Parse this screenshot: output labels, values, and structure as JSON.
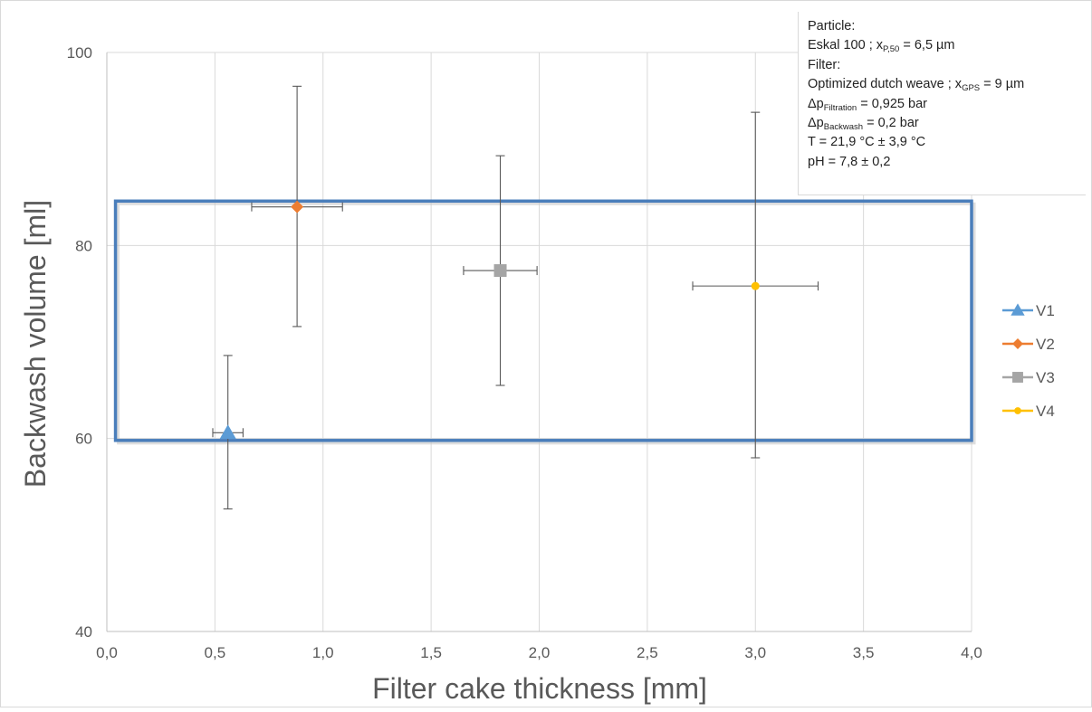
{
  "chart_data": {
    "type": "scatter",
    "xlabel": "Filter cake thickness [mm]",
    "ylabel": "Backwash volume [ml]",
    "xlim": [
      0,
      4
    ],
    "ylim": [
      40,
      100
    ],
    "x_ticks": [
      "0,0",
      "0,5",
      "1,0",
      "1,5",
      "2,0",
      "2,5",
      "3,0",
      "3,5",
      "4,0"
    ],
    "y_ticks": [
      "40",
      "60",
      "80",
      "100"
    ],
    "x_tick_values": [
      0,
      0.5,
      1,
      1.5,
      2,
      2.5,
      3,
      3.5,
      4
    ],
    "y_tick_values": [
      40,
      60,
      80,
      100
    ],
    "grid": true,
    "legend_position": "right",
    "series": [
      {
        "name": "V1",
        "marker": "triangle",
        "color": "#5b9bd5",
        "x": 0.56,
        "y": 60.6,
        "x_err": [
          0.49,
          0.63
        ],
        "y_err": [
          52.7,
          68.6
        ]
      },
      {
        "name": "V2",
        "marker": "diamond",
        "color": "#ed7d31",
        "x": 0.88,
        "y": 84.0,
        "x_err": [
          0.67,
          1.09
        ],
        "y_err": [
          71.6,
          96.5
        ]
      },
      {
        "name": "V3",
        "marker": "square",
        "color": "#a5a5a5",
        "x": 1.82,
        "y": 77.4,
        "x_err": [
          1.65,
          1.99
        ],
        "y_err": [
          65.5,
          89.3
        ]
      },
      {
        "name": "V4",
        "marker": "circle",
        "color": "#ffc000",
        "x": 3.0,
        "y": 75.8,
        "x_err": [
          2.71,
          3.29
        ],
        "y_err": [
          58.0,
          93.8
        ]
      }
    ],
    "highlight_box": {
      "x_range": [
        0.04,
        4.0
      ],
      "y_range": [
        59.8,
        84.6
      ],
      "color": "#4a7ebb"
    },
    "annotation": {
      "particle_heading": "Particle:",
      "particle_line": {
        "pre": "Eskal 100 ; x",
        "sub": "P,50",
        "post": " = 6,5 µm"
      },
      "filter_heading": "Filter:",
      "filter_line": {
        "pre": "Optimized dutch weave ; x",
        "sub": "GPS",
        "post": " = 9 µm"
      },
      "dp_filtration": {
        "pre": "Δp",
        "sub": "Filtration",
        "post": " = 0,925 bar"
      },
      "dp_backwash": {
        "pre": "Δp",
        "sub": "Backwash",
        "post": " = 0,2 bar"
      },
      "temperature": "T = 21,9 °C ± 3,9 °C",
      "ph": "pH = 7,8 ± 0,2"
    }
  }
}
